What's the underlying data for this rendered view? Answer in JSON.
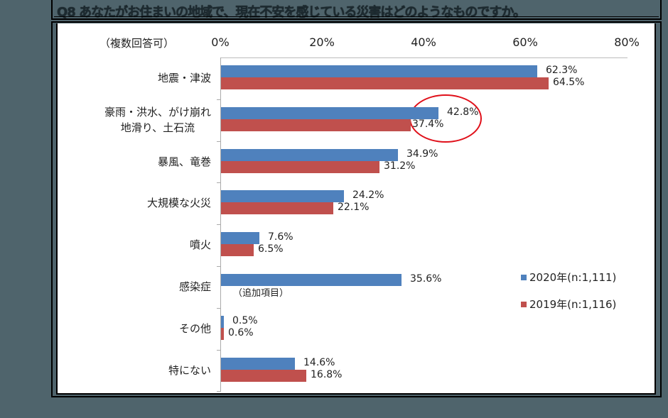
{
  "title": "Q8 あなたがお住まいの地域で、現在不安を感じている災害はどのようなものですか。",
  "colors": {
    "s2020": "#4f81bd",
    "s2019": "#c0504d",
    "highlight": "#e0101a",
    "background": "#4f646c"
  },
  "chart_data": {
    "type": "bar",
    "orientation": "horizontal",
    "title": "Q8 あなたがお住まいの地域で、現在不安を感じている災害はどのようなものですか。",
    "subtitle": "（複数回答可）",
    "xlabel": "",
    "ylabel": "",
    "xlim": [
      0,
      80
    ],
    "x_ticks": [
      "0%",
      "20%",
      "40%",
      "60%",
      "80%"
    ],
    "x_tick_values": [
      0,
      20,
      40,
      60,
      80
    ],
    "grid": false,
    "legend_position": "lower right",
    "categories": [
      "地震・津波",
      "豪雨・洪水、がけ崩れ 地滑り、土石流",
      "暴風、竜巻",
      "大規模な火災",
      "噴火",
      "感染症",
      "その他",
      "特にない"
    ],
    "series": [
      {
        "name": "2020年(n:1,111)",
        "color": "#4f81bd",
        "values": [
          62.3,
          42.8,
          34.9,
          24.2,
          7.6,
          35.6,
          0.5,
          14.6
        ]
      },
      {
        "name": "2019年(n:1,116)",
        "color": "#c0504d",
        "values": [
          64.5,
          37.4,
          31.2,
          22.1,
          6.5,
          null,
          0.6,
          16.8
        ]
      }
    ],
    "annotations": [
      {
        "text": "（追加項目）",
        "category": "感染症"
      },
      {
        "type": "ellipse",
        "target": "豪雨・洪水、がけ崩れ 地滑り、土石流",
        "color": "#e0101a"
      }
    ]
  },
  "labels": {
    "subtitle": "（複数回答可）",
    "ticks": [
      "0%",
      "20%",
      "40%",
      "60%",
      "80%"
    ],
    "categories": [
      {
        "line1": "地震・津波",
        "line2": ""
      },
      {
        "line1": "豪雨・洪水、がけ崩れ",
        "line2": "地滑り、土石流"
      },
      {
        "line1": "暴風、竜巻",
        "line2": ""
      },
      {
        "line1": "大規模な火災",
        "line2": ""
      },
      {
        "line1": "噴火",
        "line2": ""
      },
      {
        "line1": "感染症",
        "line2": ""
      },
      {
        "line1": "その他",
        "line2": ""
      },
      {
        "line1": "特にない",
        "line2": ""
      }
    ],
    "values2020": [
      "62.3%",
      "42.8%",
      "34.9%",
      "24.2%",
      "7.6%",
      "35.6%",
      "0.5%",
      "14.6%"
    ],
    "values2019": [
      "64.5%",
      "37.4%",
      "31.2%",
      "22.1%",
      "6.5%",
      "",
      "0.6%",
      "16.8%"
    ],
    "note": "（追加項目）",
    "legend": [
      "2020年(n:1,111)",
      "2019年(n:1,116)"
    ]
  }
}
